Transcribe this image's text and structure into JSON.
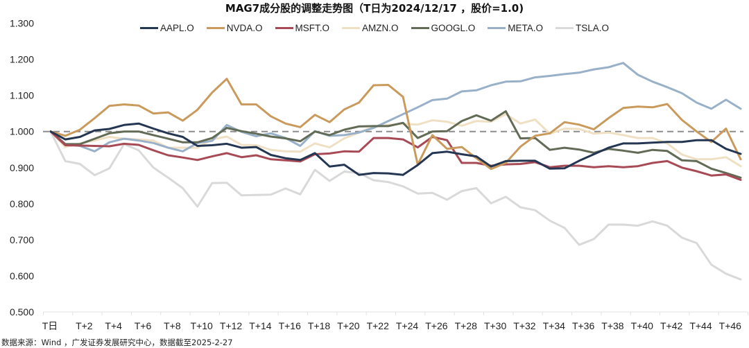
{
  "title": "MAG7成分股的调整走势图（T日为2024/12/17 ，股价=1.0)",
  "source_note": "数据来源：Wind ，广发证券发展研究中心，数据截至2025-2-27",
  "chart_data": {
    "type": "line",
    "title": "MAG7成分股的调整走势图（T日为2024/12/17 ，股价=1.0)",
    "xlabel": "",
    "ylabel": "",
    "ylim": [
      0.5,
      1.3
    ],
    "yticks": [
      "1.300",
      "1.200",
      "1.100",
      "1.000",
      "0.900",
      "0.800",
      "0.700",
      "0.600",
      "0.500"
    ],
    "ytick_values": [
      1.3,
      1.2,
      1.1,
      1.0,
      0.9,
      0.8,
      0.7,
      0.6,
      0.5
    ],
    "xtick_labels": [
      "T日",
      "T+2",
      "T+4",
      "T+6",
      "T+8",
      "T+10",
      "T+12",
      "T+14",
      "T+16",
      "T+18",
      "T+20",
      "T+22",
      "T+24",
      "T+26",
      "T+28",
      "T+30",
      "T+32",
      "T+34",
      "T+36",
      "T+38",
      "T+40",
      "T+42",
      "T+44",
      "T+46"
    ],
    "x": [
      "T日",
      "T+1",
      "T+2",
      "T+3",
      "T+4",
      "T+5",
      "T+6",
      "T+7",
      "T+8",
      "T+9",
      "T+10",
      "T+11",
      "T+12",
      "T+13",
      "T+14",
      "T+15",
      "T+16",
      "T+17",
      "T+18",
      "T+19",
      "T+20",
      "T+21",
      "T+22",
      "T+23",
      "T+24",
      "T+25",
      "T+26",
      "T+27",
      "T+28",
      "T+29",
      "T+30",
      "T+31",
      "T+32",
      "T+33",
      "T+34",
      "T+35",
      "T+36",
      "T+37",
      "T+38",
      "T+39",
      "T+40",
      "T+41",
      "T+42",
      "T+43",
      "T+44",
      "T+45",
      "T+46",
      "T+47"
    ],
    "reference_line": {
      "value": 1.0,
      "style": "dashed",
      "color": "#8c8c8c"
    },
    "grid": false,
    "legend_position": "top",
    "series": [
      {
        "name": "AAPL.O",
        "color": "#243652",
        "values": [
          1.0,
          0.978,
          0.985,
          1.003,
          1.007,
          1.018,
          1.022,
          1.008,
          0.995,
          0.985,
          0.96,
          0.962,
          0.966,
          0.955,
          0.957,
          0.935,
          0.926,
          0.921,
          0.94,
          0.903,
          0.908,
          0.88,
          0.885,
          0.884,
          0.88,
          0.907,
          0.94,
          0.944,
          0.937,
          0.931,
          0.903,
          0.918,
          0.919,
          0.919,
          0.897,
          0.898,
          0.919,
          0.937,
          0.955,
          0.967,
          0.967,
          0.969,
          0.971,
          0.971,
          0.976,
          0.976,
          0.952,
          0.938
        ]
      },
      {
        "name": "NVDA.O",
        "color": "#c99a5b",
        "values": [
          1.0,
          0.988,
          1.005,
          1.037,
          1.071,
          1.075,
          1.072,
          1.05,
          1.053,
          1.03,
          1.06,
          1.108,
          1.146,
          1.075,
          1.075,
          1.042,
          1.022,
          1.012,
          1.046,
          1.026,
          1.061,
          1.08,
          1.128,
          1.129,
          1.096,
          0.908,
          0.99,
          0.952,
          0.957,
          0.926,
          0.896,
          0.913,
          0.958,
          0.988,
          0.995,
          1.026,
          1.019,
          1.006,
          1.037,
          1.065,
          1.069,
          1.067,
          1.076,
          1.032,
          1.0,
          0.971,
          1.008,
          0.923
        ]
      },
      {
        "name": "MSFT.O",
        "color": "#a84a55",
        "values": [
          1.0,
          0.962,
          0.961,
          0.96,
          0.959,
          0.966,
          0.963,
          0.948,
          0.934,
          0.928,
          0.921,
          0.931,
          0.94,
          0.929,
          0.934,
          0.923,
          0.92,
          0.917,
          0.937,
          0.939,
          0.945,
          0.944,
          0.982,
          0.982,
          0.978,
          0.956,
          0.985,
          0.976,
          0.913,
          0.913,
          0.905,
          0.909,
          0.91,
          0.915,
          0.901,
          0.905,
          0.905,
          0.901,
          0.904,
          0.901,
          0.904,
          0.913,
          0.918,
          0.9,
          0.89,
          0.878,
          0.881,
          0.866
        ]
      },
      {
        "name": "AMZN.O",
        "color": "#efe0c4",
        "values": [
          1.0,
          0.957,
          0.967,
          0.975,
          0.985,
          0.98,
          0.978,
          0.975,
          0.955,
          0.955,
          0.955,
          0.978,
          0.986,
          0.963,
          0.962,
          0.949,
          0.945,
          0.944,
          0.967,
          0.956,
          0.981,
          0.997,
          1.013,
          1.018,
          1.021,
          1.019,
          1.031,
          1.027,
          1.016,
          1.029,
          1.027,
          1.048,
          1.022,
          1.033,
          0.994,
          1.008,
          1.007,
          0.994,
          0.997,
          0.99,
          0.982,
          0.982,
          0.967,
          0.936,
          0.923,
          0.923,
          0.929,
          0.904
        ]
      },
      {
        "name": "GOOGL.O",
        "color": "#626b55",
        "values": [
          1.0,
          0.965,
          0.965,
          0.98,
          0.995,
          1.0,
          1.0,
          0.99,
          0.98,
          0.97,
          0.97,
          0.982,
          1.01,
          1.001,
          0.994,
          0.986,
          0.981,
          0.973,
          1.0,
          0.99,
          1.005,
          1.014,
          1.015,
          1.015,
          1.024,
          0.982,
          1.0,
          1.001,
          1.029,
          1.045,
          1.03,
          1.056,
          0.981,
          0.982,
          0.949,
          0.955,
          0.95,
          0.941,
          0.952,
          0.947,
          0.941,
          0.949,
          0.946,
          0.92,
          0.918,
          0.897,
          0.885,
          0.872
        ]
      },
      {
        "name": "META.O",
        "color": "#98b0c8",
        "values": [
          1.0,
          0.965,
          0.96,
          0.945,
          0.97,
          0.98,
          0.975,
          0.968,
          0.955,
          0.945,
          0.968,
          0.974,
          1.018,
          0.999,
          0.987,
          0.995,
          0.982,
          0.96,
          1.001,
          0.988,
          0.99,
          0.997,
          1.01,
          1.029,
          1.048,
          1.067,
          1.087,
          1.091,
          1.111,
          1.114,
          1.128,
          1.138,
          1.139,
          1.15,
          1.154,
          1.159,
          1.163,
          1.172,
          1.178,
          1.19,
          1.157,
          1.138,
          1.123,
          1.106,
          1.08,
          1.063,
          1.088,
          1.063
        ]
      },
      {
        "name": "TSLA.O",
        "color": "#d9d9d9",
        "values": [
          1.0,
          0.918,
          0.91,
          0.879,
          0.898,
          0.965,
          0.948,
          0.9,
          0.872,
          0.843,
          0.792,
          0.857,
          0.858,
          0.823,
          0.824,
          0.825,
          0.842,
          0.826,
          0.894,
          0.863,
          0.889,
          0.885,
          0.865,
          0.86,
          0.848,
          0.828,
          0.83,
          0.811,
          0.835,
          0.843,
          0.801,
          0.819,
          0.79,
          0.782,
          0.753,
          0.733,
          0.686,
          0.702,
          0.742,
          0.742,
          0.739,
          0.751,
          0.739,
          0.706,
          0.691,
          0.631,
          0.606,
          0.59
        ]
      }
    ]
  }
}
